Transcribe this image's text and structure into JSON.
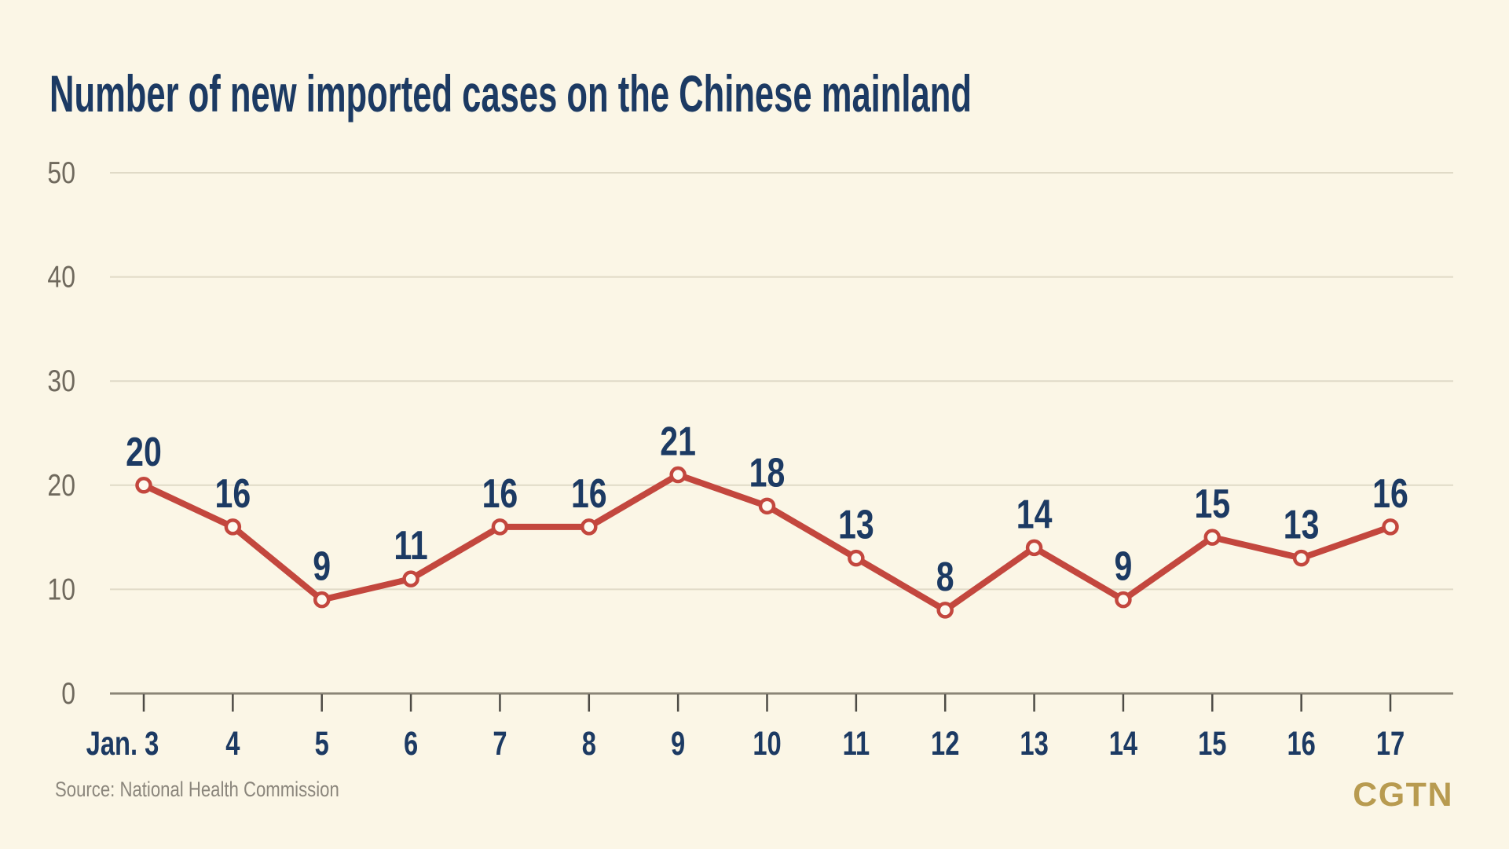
{
  "chart_data": {
    "type": "line",
    "title": "Number of new imported cases on the Chinese mainland",
    "categories": [
      "Jan. 3",
      "4",
      "5",
      "6",
      "7",
      "8",
      "9",
      "10",
      "11",
      "12",
      "13",
      "14",
      "15",
      "16",
      "17"
    ],
    "values": [
      20,
      16,
      9,
      11,
      16,
      16,
      21,
      18,
      13,
      8,
      14,
      9,
      15,
      13,
      16
    ],
    "xlabel": "",
    "ylabel": "",
    "ylim": [
      0,
      50
    ],
    "y_ticks": [
      0,
      10,
      20,
      30,
      40,
      50
    ],
    "grid": "horizontal",
    "legend": "none",
    "colors": {
      "line": "#c3473e",
      "marker_fill": "#fdfaf0",
      "data_label": "#1c3a63",
      "axis_label": "#6f695d",
      "gridline": "#e0dac7",
      "axis_line": "#8b8577",
      "tick": "#4d4b45",
      "background": "#fbf6e6",
      "title": "#1c3a63"
    }
  },
  "footer": {
    "source": "Source: National Health Commission",
    "logo": "CGTN"
  }
}
